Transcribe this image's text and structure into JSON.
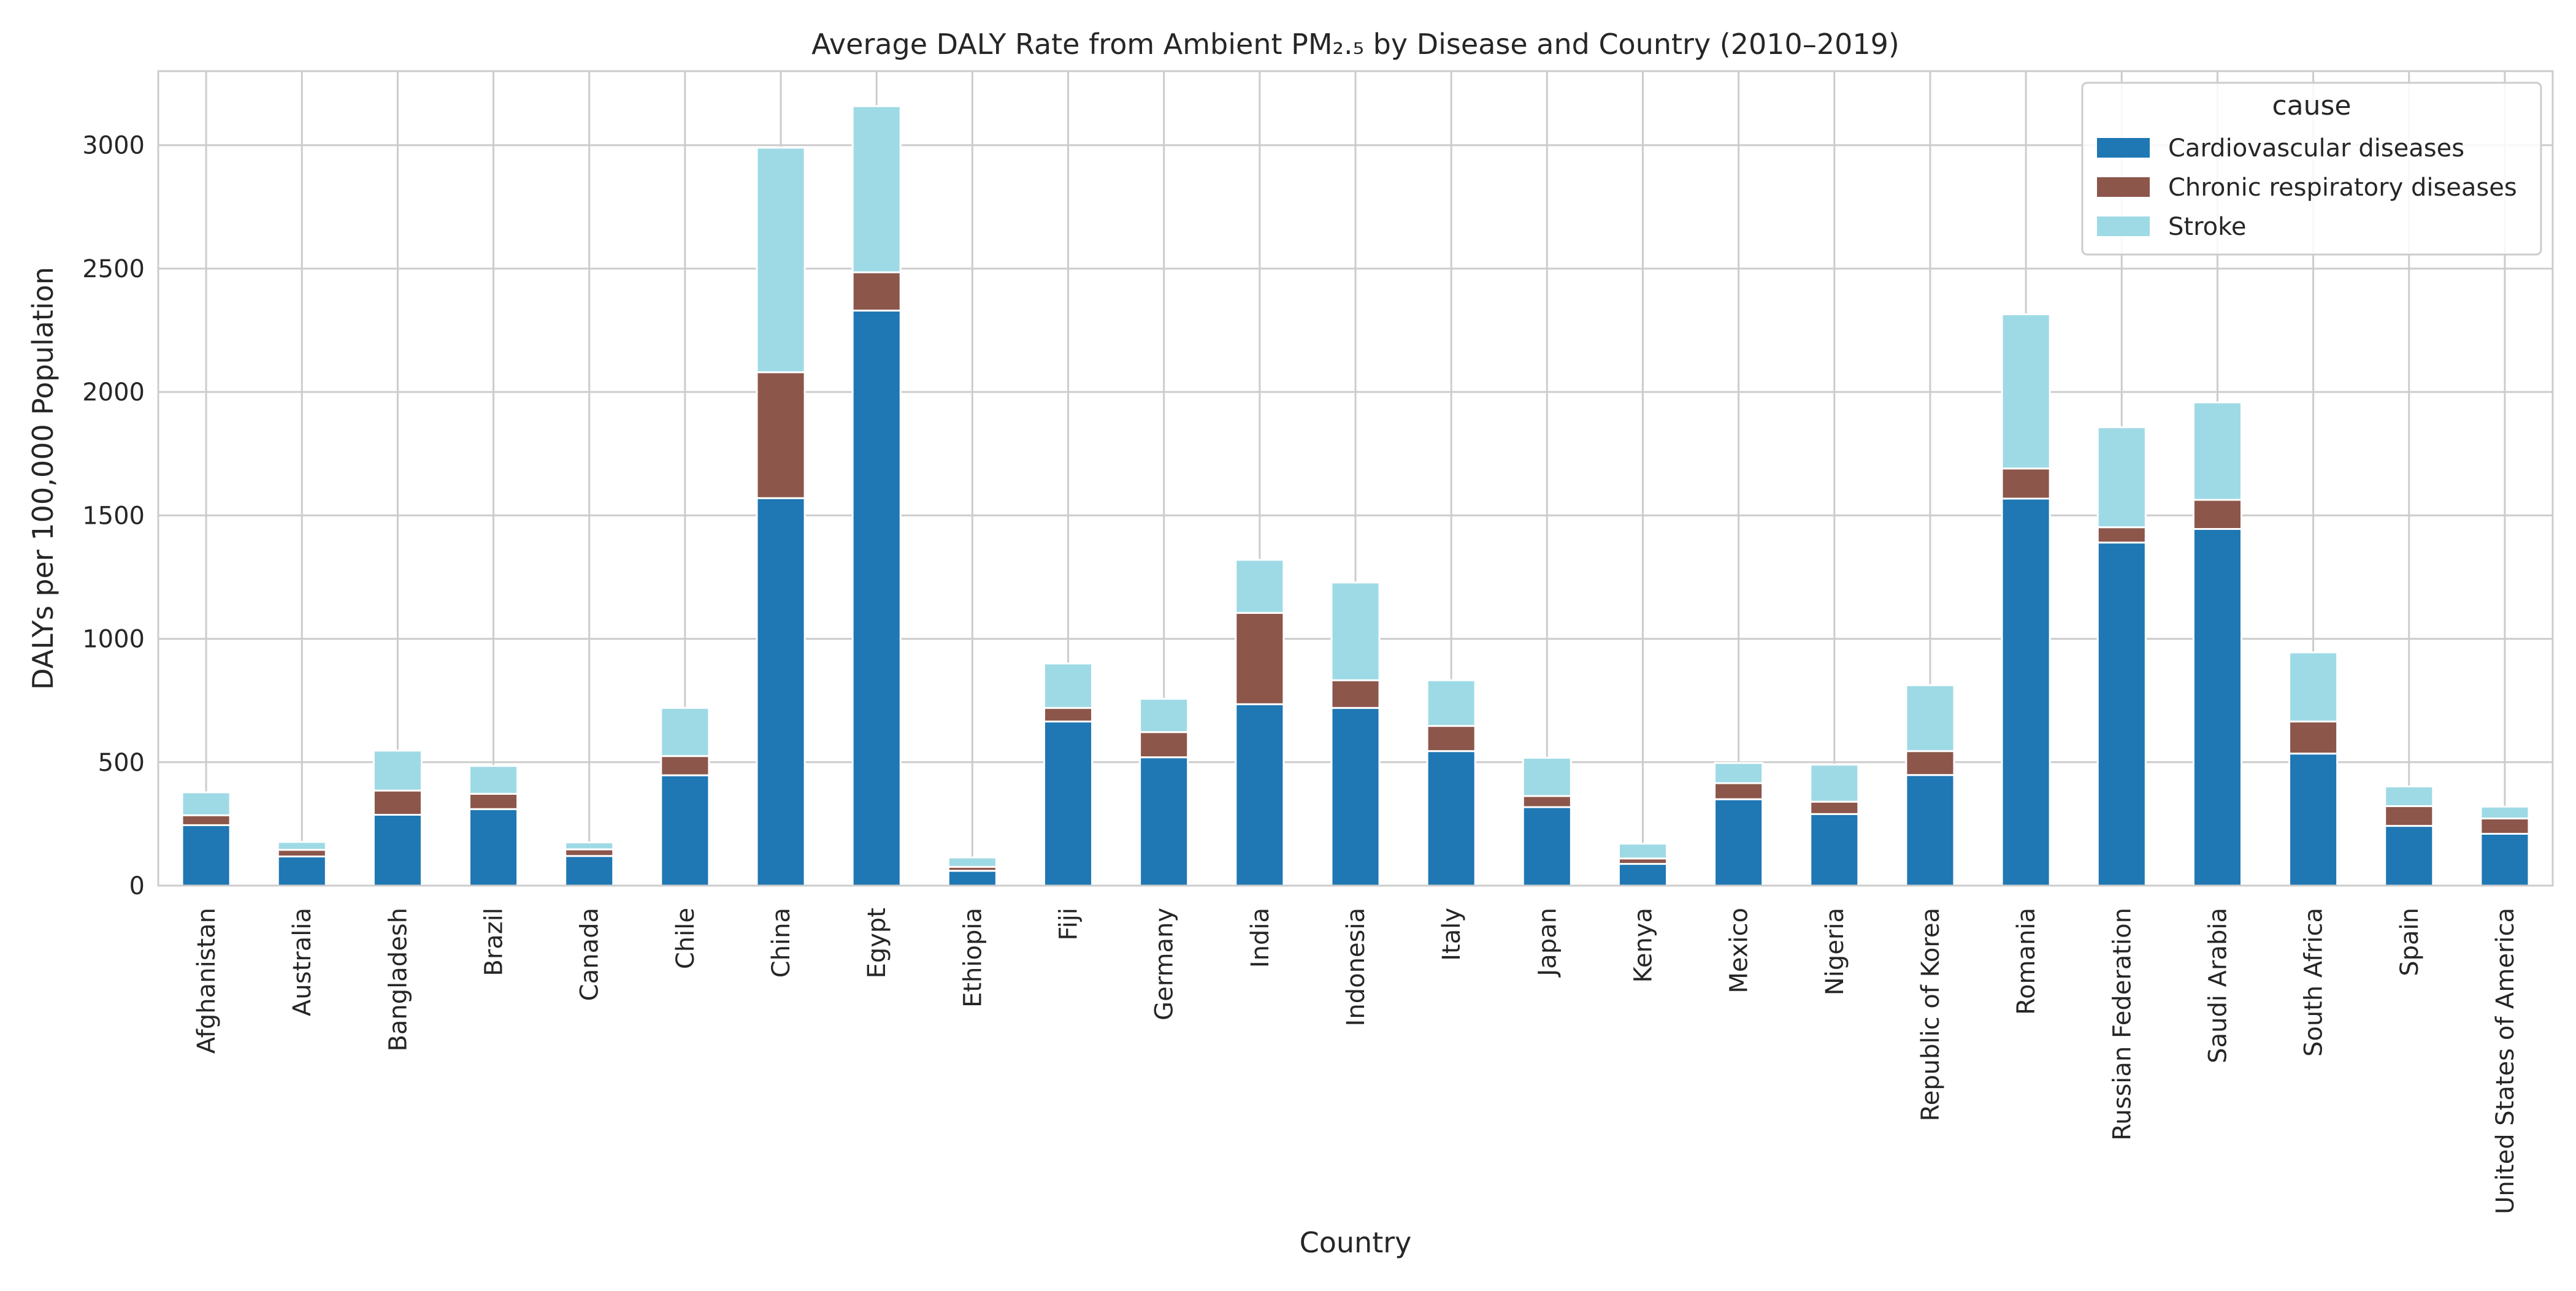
{
  "chart_data": {
    "type": "bar",
    "stacked": true,
    "title": "Average DALY Rate from Ambient PM₂.₅ by Disease and Country (2010–2019)",
    "xlabel": "Country",
    "ylabel": "DALYs per 100,000 Population",
    "ylim": [
      0,
      3300
    ],
    "yticks": [
      0,
      500,
      1000,
      1500,
      2000,
      2500,
      3000
    ],
    "grid": true,
    "legend": {
      "title": "cause",
      "position": "top-right"
    },
    "categories": [
      "Afghanistan",
      "Australia",
      "Bangladesh",
      "Brazil",
      "Canada",
      "Chile",
      "China",
      "Egypt",
      "Ethiopia",
      "Fiji",
      "Germany",
      "India",
      "Indonesia",
      "Italy",
      "Japan",
      "Kenya",
      "Mexico",
      "Nigeria",
      "Republic of Korea",
      "Romania",
      "Russian Federation",
      "Saudi Arabia",
      "South Africa",
      "Spain",
      "United States of America"
    ],
    "series": [
      {
        "name": "Cardiovascular diseases",
        "color": "#1f77b4",
        "values": [
          245,
          118,
          287,
          310,
          120,
          447,
          1570,
          2330,
          60,
          665,
          520,
          735,
          720,
          545,
          318,
          88,
          350,
          290,
          448,
          1568,
          1390,
          1445,
          535,
          242,
          210
        ]
      },
      {
        "name": "Chronic respiratory diseases",
        "color": "#8c564b",
        "values": [
          40,
          27,
          98,
          62,
          27,
          78,
          510,
          155,
          16,
          55,
          102,
          370,
          112,
          102,
          45,
          22,
          65,
          50,
          97,
          122,
          62,
          118,
          130,
          80,
          62
        ]
      },
      {
        "name": "Stroke",
        "color": "#9edae5",
        "values": [
          93,
          32,
          162,
          113,
          28,
          195,
          910,
          673,
          38,
          180,
          135,
          215,
          396,
          185,
          155,
          60,
          82,
          150,
          267,
          625,
          405,
          395,
          280,
          80,
          48
        ]
      }
    ]
  }
}
